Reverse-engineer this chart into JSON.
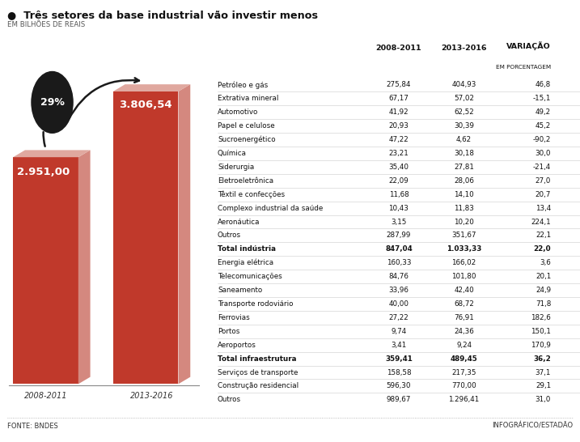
{
  "title": "Três setores da base industrial vão investir menos",
  "subtitle": "EM BILHÕES DE REAIS",
  "bar_values": [
    2951.0,
    3806.54
  ],
  "bar_labels": [
    "2.951,00",
    "3.806,54"
  ],
  "bar_categories": [
    "2008-2011",
    "2013-2016"
  ],
  "bar_color_front": "#c0392b",
  "bar_color_side": "#d4887f",
  "bar_color_top": "#e0a89f",
  "pct_label": "29%",
  "col_headers": [
    "",
    "2008-2011",
    "2013-2016",
    "VARIAÇÃO",
    "EM PORCENTAGEM"
  ],
  "rows": [
    [
      "Petróleo e gás",
      "275,84",
      "404,93",
      "46,8",
      false
    ],
    [
      "Extrativa mineral",
      "67,17",
      "57,02",
      "-15,1",
      false
    ],
    [
      "Automotivo",
      "41,92",
      "62,52",
      "49,2",
      false
    ],
    [
      "Papel e celulose",
      "20,93",
      "30,39",
      "45,2",
      false
    ],
    [
      "Sucroenergético",
      "47,22",
      "4,62",
      "-90,2",
      false
    ],
    [
      "Química",
      "23,21",
      "30,18",
      "30,0",
      false
    ],
    [
      "Siderurgia",
      "35,40",
      "27,81",
      "-21,4",
      false
    ],
    [
      "Eletroeletrônica",
      "22,09",
      "28,06",
      "27,0",
      false
    ],
    [
      "Têxtil e confecções",
      "11,68",
      "14,10",
      "20,7",
      false
    ],
    [
      "Complexo industrial da saúde",
      "10,43",
      "11,83",
      "13,4",
      false
    ],
    [
      "Aeronáutica",
      "3,15",
      "10,20",
      "224,1",
      false
    ],
    [
      "Outros",
      "287,99",
      "351,67",
      "22,1",
      false
    ],
    [
      "Total indústria",
      "847,04",
      "1.033,33",
      "22,0",
      true
    ],
    [
      "Energia elétrica",
      "160,33",
      "166,02",
      "3,6",
      false
    ],
    [
      "Telecomunicações",
      "84,76",
      "101,80",
      "20,1",
      false
    ],
    [
      "Saneamento",
      "33,96",
      "42,40",
      "24,9",
      false
    ],
    [
      "Transporte rodoviário",
      "40,00",
      "68,72",
      "71,8",
      false
    ],
    [
      "Ferrovias",
      "27,22",
      "76,91",
      "182,6",
      false
    ],
    [
      "Portos",
      "9,74",
      "24,36",
      "150,1",
      false
    ],
    [
      "Aeroportos",
      "3,41",
      "9,24",
      "170,9",
      false
    ],
    [
      "Total infraestrutura",
      "359,41",
      "489,45",
      "36,2",
      true
    ],
    [
      "Serviços de transporte",
      "158,58",
      "217,35",
      "37,1",
      false
    ],
    [
      "Construção residencial",
      "596,30",
      "770,00",
      "29,1",
      false
    ],
    [
      "Outros",
      "989,67",
      "1.296,41",
      "31,0",
      false
    ]
  ],
  "fonte": "FONTE: BNDES",
  "credito": "INFOGRÁFICO/ESTADÃO",
  "bg_color": "#ffffff",
  "divider_color": "#aaaaaa",
  "text_color": "#111111",
  "subtext_color": "#555555"
}
